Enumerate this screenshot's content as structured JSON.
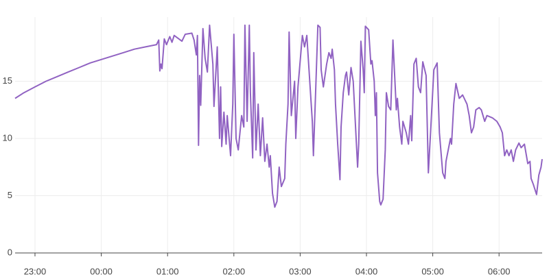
{
  "chart_data": {
    "type": "line",
    "x": [
      "22:42",
      "22:50",
      "23:00",
      "23:10",
      "23:20",
      "23:30",
      "23:40",
      "23:50",
      "00:00",
      "00:10",
      "00:20",
      "00:30",
      "00:40",
      "00:50",
      "00:52",
      "00:53",
      "00:54",
      "00:55",
      "00:57",
      "00:59",
      "01:02",
      "01:04",
      "01:06",
      "01:13",
      "01:16",
      "01:22",
      "01:24",
      "01:26",
      "01:27",
      "01:28",
      "01:29",
      "01:30",
      "01:32",
      "01:34",
      "01:36",
      "01:38",
      "01:41",
      "01:42",
      "01:45",
      "01:47",
      "01:48",
      "01:49",
      "01:51",
      "01:53",
      "01:54",
      "01:57",
      "01:59",
      "02:00",
      "02:02",
      "02:04",
      "02:07",
      "02:09",
      "02:10",
      "02:12",
      "02:14",
      "02:15",
      "02:17",
      "02:18",
      "02:20",
      "02:22",
      "02:24",
      "02:26",
      "02:28",
      "02:30",
      "02:32",
      "02:33",
      "02:35",
      "02:37",
      "02:39",
      "02:41",
      "02:43",
      "02:46",
      "02:47",
      "02:49",
      "02:50",
      "02:52",
      "02:55",
      "02:56",
      "02:58",
      "03:02",
      "03:04",
      "03:06",
      "03:08",
      "03:11",
      "03:12",
      "03:14",
      "03:16",
      "03:18",
      "03:19",
      "03:21",
      "03:24",
      "03:26",
      "03:28",
      "03:29",
      "03:31",
      "03:32",
      "03:34",
      "03:36",
      "03:37",
      "03:39",
      "03:41",
      "03:42",
      "03:44",
      "03:46",
      "03:48",
      "03:52",
      "03:53",
      "03:55",
      "03:57",
      "03:58",
      "03:59",
      "04:02",
      "04:04",
      "04:05",
      "04:07",
      "04:08",
      "04:09",
      "04:10",
      "04:12",
      "04:13",
      "04:15",
      "04:17",
      "04:18",
      "04:20",
      "04:22",
      "04:23",
      "04:24",
      "04:26",
      "04:27",
      "04:28",
      "04:30",
      "04:32",
      "04:33",
      "04:36",
      "04:38",
      "04:40",
      "04:41",
      "04:43",
      "04:45",
      "04:47",
      "04:49",
      "04:51",
      "04:54",
      "04:56",
      "04:58",
      "05:01",
      "05:04",
      "05:06",
      "05:09",
      "05:11",
      "05:12",
      "05:16",
      "05:17",
      "05:19",
      "05:21",
      "05:24",
      "05:27",
      "05:31",
      "05:33",
      "05:35",
      "05:37",
      "05:39",
      "05:42",
      "05:44",
      "05:47",
      "05:49",
      "05:54",
      "05:58",
      "06:01",
      "06:03",
      "06:05",
      "06:07",
      "06:09",
      "06:11",
      "06:13",
      "06:15",
      "06:18",
      "06:20",
      "06:23",
      "06:26",
      "06:28",
      "06:29",
      "06:31",
      "06:34",
      "06:36",
      "06:38",
      "06:39"
    ],
    "series": [
      {
        "color": "#9062c2",
        "values": [
          13.5,
          14.0,
          14.5,
          15.0,
          15.4,
          15.8,
          16.2,
          16.6,
          16.9,
          17.2,
          17.5,
          17.8,
          18.0,
          18.2,
          18.6,
          15.9,
          16.5,
          16.1,
          18.7,
          18.2,
          18.9,
          18.4,
          19.0,
          18.5,
          19.1,
          19.2,
          18.6,
          17.3,
          19.0,
          9.4,
          15.5,
          12.9,
          19.6,
          17.0,
          15.8,
          19.9,
          16.5,
          12.8,
          18.0,
          10.0,
          14.5,
          9.3,
          12.3,
          9.5,
          12.0,
          8.5,
          13.0,
          19.1,
          10.0,
          9.0,
          12.0,
          11.0,
          19.9,
          11.5,
          19.9,
          14.0,
          8.3,
          17.5,
          9.0,
          13.0,
          8.5,
          11.8,
          8.0,
          9.5,
          7.5,
          8.5,
          5.2,
          4.0,
          4.5,
          7.5,
          5.8,
          6.5,
          9.5,
          13.0,
          19.3,
          12.0,
          15.0,
          10.0,
          14.5,
          19.0,
          18.0,
          19.0,
          16.0,
          11.5,
          8.5,
          14.0,
          19.9,
          19.7,
          16.0,
          14.5,
          16.5,
          17.5,
          17.0,
          17.8,
          16.0,
          13.0,
          9.5,
          6.4,
          11.0,
          14.0,
          15.5,
          15.8,
          13.8,
          16.2,
          15.0,
          7.5,
          9.5,
          18.5,
          16.0,
          14.0,
          19.8,
          19.5,
          16.5,
          16.8,
          15.0,
          12.0,
          14.0,
          7.0,
          4.5,
          4.2,
          4.7,
          9.0,
          14.0,
          12.8,
          12.5,
          15.5,
          18.6,
          14.5,
          12.5,
          13.5,
          11.0,
          9.5,
          11.5,
          10.5,
          9.5,
          12.0,
          9.8,
          16.5,
          17.0,
          14.5,
          14.0,
          16.7,
          15.5,
          7.0,
          10.5,
          16.0,
          16.6,
          10.5,
          7.0,
          6.5,
          8.0,
          10.0,
          9.5,
          13.0,
          14.8,
          13.5,
          13.8,
          13.0,
          12.0,
          10.5,
          11.0,
          12.5,
          12.7,
          12.5,
          11.5,
          12.0,
          11.8,
          11.5,
          11.0,
          10.5,
          8.5,
          9.0,
          8.5,
          9.0,
          8.0,
          9.0,
          9.6,
          9.2,
          9.5,
          7.8,
          8.0,
          6.5,
          6.0,
          5.1,
          6.8,
          7.5,
          8.2
        ]
      }
    ],
    "xlim": [
      "22:42",
      "06:39"
    ],
    "xticks": [
      "23:00",
      "00:00",
      "01:00",
      "02:00",
      "03:00",
      "04:00",
      "05:00",
      "06:00"
    ],
    "ylim": [
      0,
      20
    ],
    "yticks": [
      0,
      5,
      10,
      15
    ],
    "grid": true
  }
}
